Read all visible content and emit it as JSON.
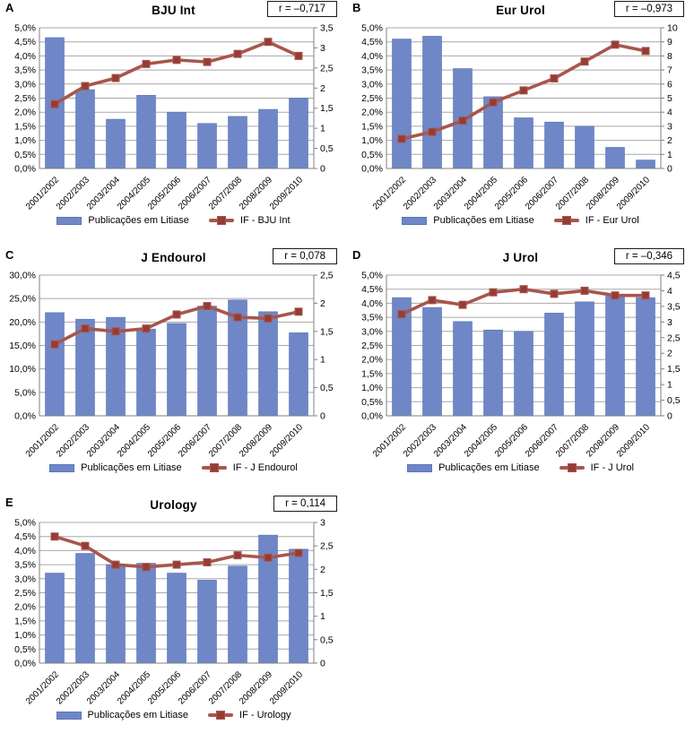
{
  "page": {
    "background": "#ffffff"
  },
  "colors": {
    "bar": "#6f87c7",
    "bar_edge": "#5b75b7",
    "line": "#a8564c",
    "marker": "#963c36",
    "grid": "#a8a8a8",
    "axis": "#808080",
    "text": "#000000",
    "box_border": "#1a1a1a"
  },
  "chart_data": [
    {
      "panel": "A",
      "type": "bar",
      "title": "BJU Int",
      "correlation_label": "r = –0,717",
      "categories": [
        "2001/2002",
        "2002/2003",
        "2003/2004",
        "2004/2005",
        "2005/2006",
        "2006/2007",
        "2007/2008",
        "2008/2009",
        "2009/2010"
      ],
      "series": [
        {
          "name": "Publicações em Litiase",
          "type": "bar",
          "axis": "left",
          "values": [
            4.65,
            2.8,
            1.75,
            2.6,
            2.0,
            1.6,
            1.85,
            2.1,
            2.5
          ]
        },
        {
          "name": "IF - BJU Int",
          "type": "line",
          "axis": "right",
          "values": [
            1.6,
            2.05,
            2.25,
            2.6,
            2.7,
            2.65,
            2.85,
            3.15,
            2.8
          ]
        }
      ],
      "left_axis": {
        "min": 0,
        "max": 5,
        "tick_labels": [
          "0,0%",
          "0,5%",
          "1,0%",
          "1,5%",
          "2,0%",
          "2,5%",
          "3,0%",
          "3,5%",
          "4,0%",
          "4,5%",
          "5,0%"
        ]
      },
      "right_axis": {
        "min": 0,
        "max": 3.5,
        "tick_labels": [
          "0",
          "0,5",
          "1",
          "1,5",
          "2",
          "2,5",
          "3",
          "3,5"
        ]
      },
      "grid": true,
      "legend_position": "bottom"
    },
    {
      "panel": "B",
      "type": "bar",
      "title": "Eur Urol",
      "correlation_label": "r = –0,973",
      "categories": [
        "2001/2002",
        "2002/2003",
        "2003/2004",
        "2004/2005",
        "2005/2006",
        "2006/2007",
        "2007/2008",
        "2008/2009",
        "2009/2010"
      ],
      "series": [
        {
          "name": "Publicações em Litiase",
          "type": "bar",
          "axis": "left",
          "values": [
            4.6,
            4.7,
            3.55,
            2.55,
            1.8,
            1.65,
            1.5,
            0.75,
            0.3
          ]
        },
        {
          "name": "IF - Eur Urol",
          "type": "line",
          "axis": "right",
          "values": [
            2.1,
            2.6,
            3.4,
            4.7,
            5.55,
            6.4,
            7.6,
            8.8,
            8.35
          ]
        }
      ],
      "left_axis": {
        "min": 0,
        "max": 5,
        "tick_labels": [
          "0,0%",
          "0,5%",
          "1,0%",
          "1,5%",
          "2,0%",
          "2,5%",
          "3,0%",
          "3,5%",
          "4,0%",
          "4,5%",
          "5,0%"
        ]
      },
      "right_axis": {
        "min": 0,
        "max": 10,
        "tick_labels": [
          "0",
          "1",
          "2",
          "3",
          "4",
          "5",
          "6",
          "7",
          "8",
          "9",
          "10"
        ]
      },
      "grid": true,
      "legend_position": "bottom"
    },
    {
      "panel": "C",
      "type": "bar",
      "title": "J Endourol",
      "correlation_label": "r = 0,078",
      "categories": [
        "2001/2002",
        "2002/2003",
        "2003/2004",
        "2004/2005",
        "2005/2006",
        "2006/2007",
        "2007/2008",
        "2008/2009",
        "2009/2010"
      ],
      "series": [
        {
          "name": "Publicações em Litiase",
          "type": "bar",
          "axis": "left",
          "values": [
            22.0,
            20.6,
            21.0,
            18.5,
            19.7,
            23.4,
            24.7,
            22.2,
            17.7
          ]
        },
        {
          "name": "IF - J Endourol",
          "type": "line",
          "axis": "right",
          "values": [
            1.27,
            1.55,
            1.5,
            1.55,
            1.8,
            1.95,
            1.75,
            1.73,
            1.85
          ]
        }
      ],
      "left_axis": {
        "min": 0,
        "max": 30,
        "tick_labels": [
          "0,0%",
          "5,0%",
          "10,0%",
          "15,0%",
          "20,0%",
          "25,0%",
          "30,0%"
        ]
      },
      "right_axis": {
        "min": 0,
        "max": 2.5,
        "tick_labels": [
          "0",
          "0,5",
          "1",
          "1,5",
          "2",
          "2,5"
        ]
      },
      "grid": true,
      "legend_position": "bottom"
    },
    {
      "panel": "D",
      "type": "bar",
      "title": "J Urol",
      "correlation_label": "r = –0,346",
      "categories": [
        "2001/2002",
        "2002/2003",
        "2003/2004",
        "2004/2005",
        "2005/2006",
        "2006/2007",
        "2007/2008",
        "2008/2009",
        "2009/2010"
      ],
      "series": [
        {
          "name": "Publicações em Litiase",
          "type": "bar",
          "axis": "left",
          "values": [
            4.2,
            3.85,
            3.35,
            3.05,
            3.0,
            3.65,
            4.05,
            4.25,
            4.2
          ]
        },
        {
          "name": "IF - J Urol",
          "type": "line",
          "axis": "right",
          "values": [
            3.25,
            3.7,
            3.55,
            3.95,
            4.05,
            3.9,
            4.0,
            3.85,
            3.85
          ]
        }
      ],
      "left_axis": {
        "min": 0,
        "max": 5,
        "tick_labels": [
          "0,0%",
          "0,5%",
          "1,0%",
          "1,5%",
          "2,0%",
          "2,5%",
          "3,0%",
          "3,5%",
          "4,0%",
          "4,5%",
          "5,0%"
        ]
      },
      "right_axis": {
        "min": 0,
        "max": 4.5,
        "tick_labels": [
          "0",
          "0,5",
          "1",
          "1,5",
          "2",
          "2,5",
          "3",
          "3,5",
          "4",
          "4,5"
        ]
      },
      "grid": true,
      "legend_position": "bottom"
    },
    {
      "panel": "E",
      "type": "bar",
      "title": "Urology",
      "correlation_label": "r = 0,114",
      "categories": [
        "2001/2002",
        "2002/2003",
        "2003/2004",
        "2004/2005",
        "2005/2006",
        "2006/2007",
        "2007/2008",
        "2008/2009",
        "2009/2010"
      ],
      "series": [
        {
          "name": "Publicações em Litiase",
          "type": "bar",
          "axis": "left",
          "values": [
            3.2,
            3.9,
            3.5,
            3.55,
            3.2,
            2.95,
            3.45,
            4.55,
            4.05
          ]
        },
        {
          "name": "IF - Urology",
          "type": "line",
          "axis": "right",
          "values": [
            2.7,
            2.5,
            2.1,
            2.05,
            2.1,
            2.15,
            2.3,
            2.25,
            2.35
          ]
        }
      ],
      "left_axis": {
        "min": 0,
        "max": 5,
        "tick_labels": [
          "0,0%",
          "0,5%",
          "1,0%",
          "1,5%",
          "2,0%",
          "2,5%",
          "3,0%",
          "3,5%",
          "4,0%",
          "4,5%",
          "5,0%"
        ]
      },
      "right_axis": {
        "min": 0,
        "max": 3,
        "tick_labels": [
          "0",
          "0,5",
          "1",
          "1,5",
          "2",
          "2,5",
          "3"
        ]
      },
      "grid": true,
      "legend_position": "bottom"
    }
  ]
}
